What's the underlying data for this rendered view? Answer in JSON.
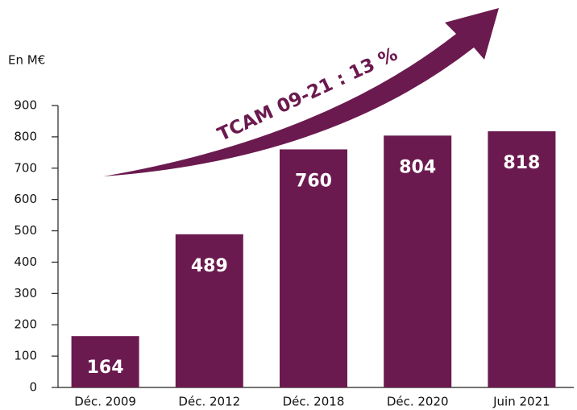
{
  "chart_data": {
    "type": "bar",
    "y_label": "En M€",
    "annotation": "TCAM 09-21  : 13 %",
    "categories": [
      "Déc. 2009",
      "Déc. 2012",
      "Déc. 2018",
      "Déc. 2020",
      "Juin 2021"
    ],
    "values": [
      164,
      489,
      760,
      804,
      818
    ],
    "color": "#6b1a4f",
    "ylim": [
      0,
      900
    ],
    "yticks": [
      0,
      100,
      200,
      300,
      400,
      500,
      600,
      700,
      800,
      900
    ],
    "grid": false
  }
}
